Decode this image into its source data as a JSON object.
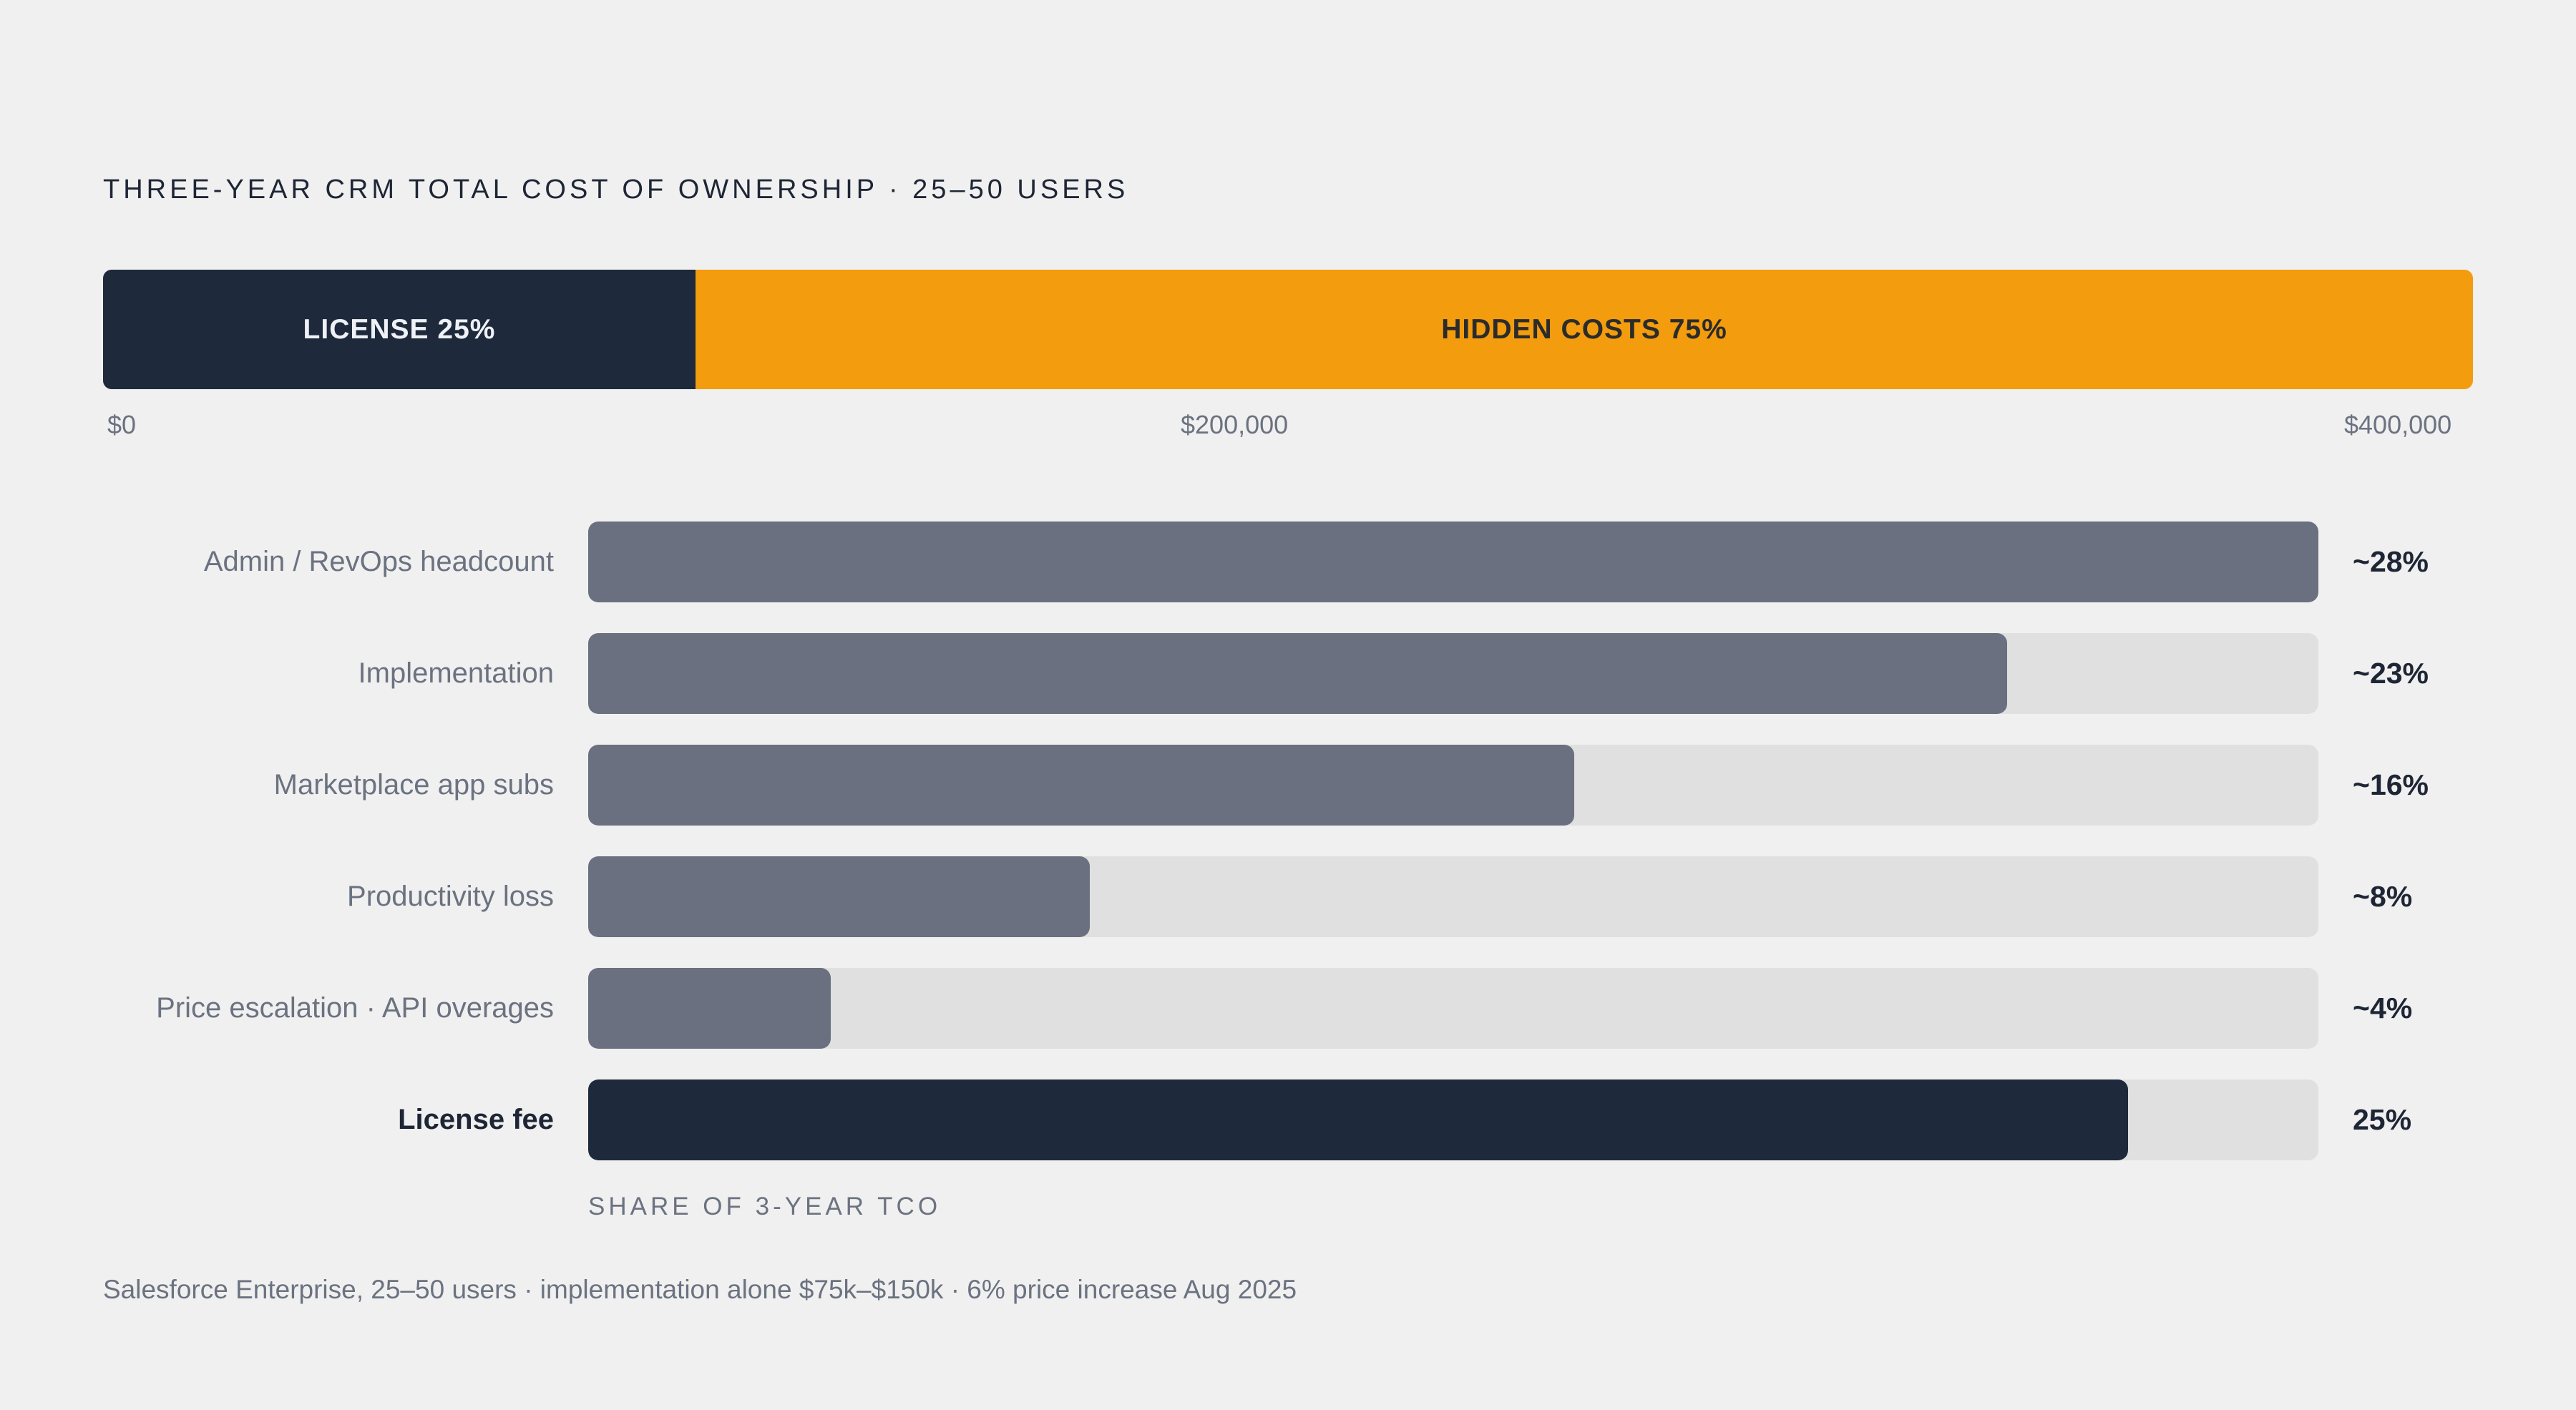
{
  "title": "THREE-YEAR CRM TOTAL COST OF OWNERSHIP · 25–50 USERS",
  "colors": {
    "license": "#1e293b",
    "hidden": "#f39c0e",
    "bar": "#6b7080",
    "track": "#e0e0e0",
    "background": "#f0f0f0"
  },
  "chart_data": [
    {
      "type": "bar",
      "orientation": "horizontal-stacked",
      "xlim": [
        0,
        400000
      ],
      "ticks": [
        "$0",
        "$200,000",
        "$400,000"
      ],
      "segments": [
        {
          "label": "LICENSE 25%",
          "value": 25,
          "color": "#1e293b"
        },
        {
          "label": "HIDDEN COSTS 75%",
          "value": 75,
          "color": "#f39c0e"
        }
      ]
    },
    {
      "type": "bar",
      "orientation": "horizontal",
      "xlabel": "SHARE OF 3-YEAR TCO",
      "categories": [
        "Admin / RevOps headcount",
        "Implementation",
        "Marketplace app subs",
        "Productivity loss",
        "Price escalation · API overages",
        "License fee"
      ],
      "values": [
        28,
        23,
        16,
        8,
        4,
        25
      ],
      "value_labels": [
        "~28%",
        "~23%",
        "~16%",
        "~8%",
        "~4%",
        "25%"
      ],
      "fill_fractions": [
        1.0,
        0.82,
        0.57,
        0.29,
        0.14,
        0.89
      ],
      "emphasized": [
        false,
        false,
        false,
        false,
        false,
        true
      ]
    }
  ],
  "footnote": "Salesforce Enterprise, 25–50 users · implementation alone $75k–$150k · 6% price increase Aug 2025"
}
